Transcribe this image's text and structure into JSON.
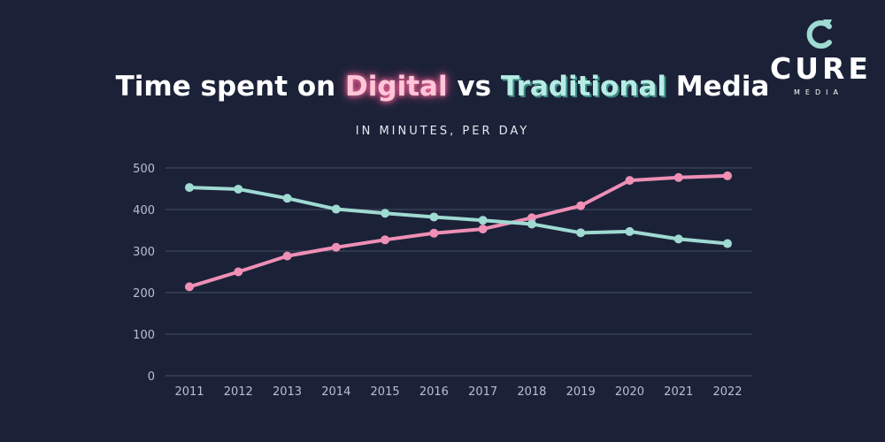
{
  "logo": {
    "word": "CURE",
    "sub": "MEDIA"
  },
  "colors": {
    "digital": "#ef8fb6",
    "traditional": "#9fdad3",
    "background": "#1b2238",
    "grid": "#454d66"
  },
  "chart_data": {
    "type": "line",
    "title_parts": [
      "Time spent on",
      "Digital",
      "vs",
      "Traditional",
      "Media"
    ],
    "title": "Time spent on Digital vs Traditional Media",
    "subtitle": "IN MINUTES, PER DAY",
    "x": [
      "2011",
      "2012",
      "2013",
      "2014",
      "2015",
      "2016",
      "2017",
      "2018",
      "2019",
      "2020",
      "2021",
      "2022"
    ],
    "series": [
      {
        "name": "Digital",
        "color": "#ef8fb6",
        "values": [
          214,
          250,
          288,
          309,
          327,
          343,
          353,
          380,
          409,
          470,
          477,
          481
        ]
      },
      {
        "name": "Traditional",
        "color": "#9fdad3",
        "values": [
          453,
          449,
          427,
          401,
          391,
          382,
          374,
          365,
          344,
          347,
          329,
          318
        ]
      }
    ],
    "yticks": [
      0,
      100,
      200,
      300,
      400,
      500
    ],
    "ylim": [
      0,
      500
    ],
    "grid": true,
    "legend": "none (series named in title)"
  }
}
